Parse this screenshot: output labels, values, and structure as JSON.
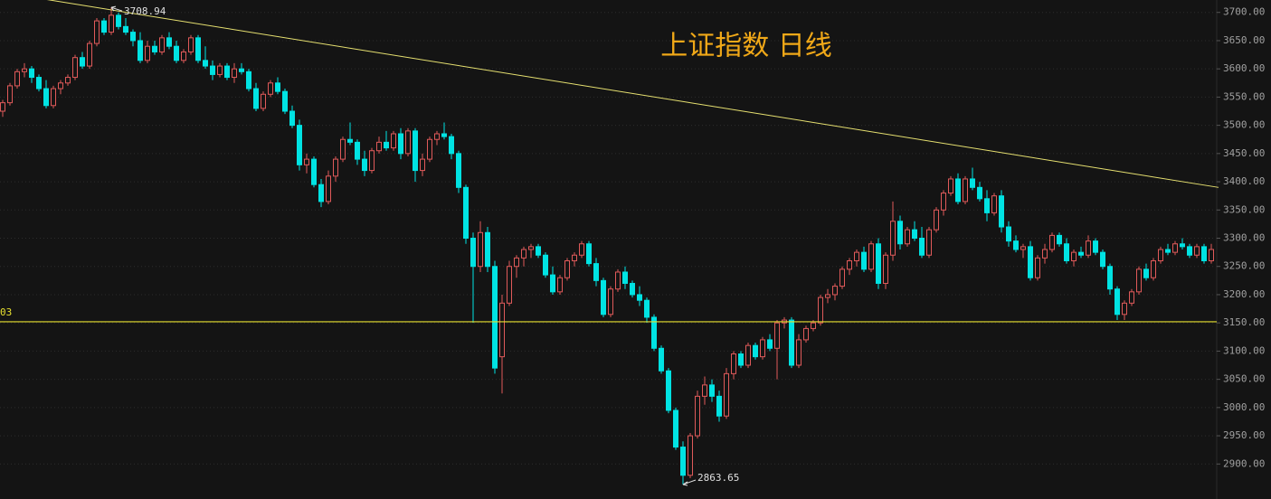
{
  "chart_data": {
    "type": "candlestick",
    "title": "上证指数 日线",
    "up_color": "#e05a5a",
    "down_color": "#00e3e3",
    "grid": true,
    "ylim": [
      2838,
      3722
    ],
    "yticks": [
      {
        "value": 2900,
        "label": "2900.00"
      },
      {
        "value": 2950,
        "label": "2950.00"
      },
      {
        "value": 3000,
        "label": "3000.00"
      },
      {
        "value": 3050,
        "label": "3050.00"
      },
      {
        "value": 3100,
        "label": "3100.00"
      },
      {
        "value": 3150,
        "label": "3150.00"
      },
      {
        "value": 3200,
        "label": "3200.00"
      },
      {
        "value": 3250,
        "label": "3250.00"
      },
      {
        "value": 3300,
        "label": "3300.00"
      },
      {
        "value": 3350,
        "label": "3350.00"
      },
      {
        "value": 3400,
        "label": "3400.00"
      },
      {
        "value": 3450,
        "label": "3450.00"
      },
      {
        "value": 3500,
        "label": "3500.00"
      },
      {
        "value": 3550,
        "label": "3550.00"
      },
      {
        "value": 3600,
        "label": "3600.00"
      },
      {
        "value": 3650,
        "label": "3650.00"
      },
      {
        "value": 3700,
        "label": "3700.00"
      }
    ],
    "hline": {
      "value": 3152,
      "label": "03",
      "color": "#e8e030"
    },
    "trendline": {
      "x": [
        6,
        168
      ],
      "y": [
        3723,
        3390
      ],
      "color": "#e6e070"
    },
    "high_marker": 15,
    "low_marker": 94,
    "candles": [
      [
        3525,
        3545,
        3515,
        3540
      ],
      [
        3540,
        3575,
        3535,
        3570
      ],
      [
        3570,
        3600,
        3565,
        3595
      ],
      [
        3595,
        3610,
        3585,
        3600
      ],
      [
        3600,
        3605,
        3575,
        3585
      ],
      [
        3585,
        3590,
        3560,
        3565
      ],
      [
        3565,
        3580,
        3530,
        3535
      ],
      [
        3535,
        3570,
        3530,
        3565
      ],
      [
        3565,
        3580,
        3555,
        3575
      ],
      [
        3575,
        3590,
        3570,
        3585
      ],
      [
        3585,
        3625,
        3580,
        3620
      ],
      [
        3620,
        3630,
        3600,
        3605
      ],
      [
        3605,
        3650,
        3600,
        3645
      ],
      [
        3645,
        3690,
        3640,
        3685
      ],
      [
        3685,
        3690,
        3660,
        3665
      ],
      [
        3665,
        3708.94,
        3660,
        3695
      ],
      [
        3695,
        3700,
        3670,
        3675
      ],
      [
        3675,
        3690,
        3660,
        3665
      ],
      [
        3665,
        3670,
        3640,
        3650
      ],
      [
        3650,
        3665,
        3610,
        3615
      ],
      [
        3615,
        3650,
        3610,
        3640
      ],
      [
        3640,
        3650,
        3625,
        3630
      ],
      [
        3630,
        3660,
        3625,
        3655
      ],
      [
        3655,
        3665,
        3635,
        3640
      ],
      [
        3640,
        3650,
        3610,
        3615
      ],
      [
        3615,
        3635,
        3610,
        3630
      ],
      [
        3630,
        3660,
        3625,
        3655
      ],
      [
        3655,
        3660,
        3610,
        3615
      ],
      [
        3615,
        3640,
        3600,
        3605
      ],
      [
        3605,
        3615,
        3580,
        3590
      ],
      [
        3590,
        3610,
        3585,
        3605
      ],
      [
        3605,
        3610,
        3580,
        3585
      ],
      [
        3585,
        3610,
        3575,
        3600
      ],
      [
        3600,
        3610,
        3590,
        3595
      ],
      [
        3595,
        3600,
        3560,
        3565
      ],
      [
        3565,
        3575,
        3525,
        3530
      ],
      [
        3530,
        3560,
        3525,
        3555
      ],
      [
        3555,
        3580,
        3550,
        3575
      ],
      [
        3575,
        3585,
        3555,
        3560
      ],
      [
        3560,
        3565,
        3520,
        3525
      ],
      [
        3525,
        3535,
        3495,
        3500
      ],
      [
        3500,
        3510,
        3420,
        3430
      ],
      [
        3430,
        3450,
        3415,
        3440
      ],
      [
        3440,
        3445,
        3390,
        3395
      ],
      [
        3395,
        3405,
        3355,
        3365
      ],
      [
        3365,
        3420,
        3360,
        3410
      ],
      [
        3410,
        3445,
        3400,
        3440
      ],
      [
        3440,
        3480,
        3435,
        3475
      ],
      [
        3475,
        3505,
        3465,
        3470
      ],
      [
        3470,
        3475,
        3430,
        3440
      ],
      [
        3440,
        3455,
        3410,
        3420
      ],
      [
        3420,
        3460,
        3415,
        3455
      ],
      [
        3455,
        3480,
        3450,
        3470
      ],
      [
        3470,
        3490,
        3455,
        3460
      ],
      [
        3460,
        3490,
        3455,
        3485
      ],
      [
        3485,
        3495,
        3440,
        3450
      ],
      [
        3450,
        3495,
        3445,
        3490
      ],
      [
        3490,
        3495,
        3400,
        3420
      ],
      [
        3420,
        3450,
        3410,
        3440
      ],
      [
        3440,
        3480,
        3435,
        3475
      ],
      [
        3475,
        3490,
        3465,
        3485
      ],
      [
        3485,
        3505,
        3475,
        3480
      ],
      [
        3480,
        3485,
        3440,
        3450
      ],
      [
        3450,
        3455,
        3380,
        3390
      ],
      [
        3390,
        3395,
        3290,
        3300
      ],
      [
        3300,
        3310,
        3150,
        3250
      ],
      [
        3250,
        3330,
        3240,
        3310
      ],
      [
        3310,
        3320,
        3240,
        3250
      ],
      [
        3250,
        3260,
        3060,
        3070
      ],
      [
        3090,
        3200,
        3025,
        3185
      ],
      [
        3185,
        3260,
        3180,
        3250
      ],
      [
        3250,
        3270,
        3230,
        3265
      ],
      [
        3265,
        3285,
        3250,
        3280
      ],
      [
        3280,
        3290,
        3265,
        3285
      ],
      [
        3285,
        3290,
        3265,
        3270
      ],
      [
        3270,
        3275,
        3230,
        3235
      ],
      [
        3235,
        3250,
        3200,
        3205
      ],
      [
        3205,
        3235,
        3200,
        3230
      ],
      [
        3230,
        3265,
        3225,
        3260
      ],
      [
        3260,
        3275,
        3250,
        3270
      ],
      [
        3270,
        3295,
        3265,
        3290
      ],
      [
        3290,
        3295,
        3250,
        3255
      ],
      [
        3255,
        3265,
        3215,
        3225
      ],
      [
        3225,
        3230,
        3160,
        3165
      ],
      [
        3165,
        3215,
        3160,
        3210
      ],
      [
        3210,
        3245,
        3205,
        3240
      ],
      [
        3240,
        3250,
        3210,
        3220
      ],
      [
        3220,
        3225,
        3195,
        3200
      ],
      [
        3200,
        3215,
        3180,
        3190
      ],
      [
        3190,
        3195,
        3150,
        3160
      ],
      [
        3160,
        3165,
        3100,
        3105
      ],
      [
        3105,
        3110,
        3060,
        3065
      ],
      [
        3065,
        3070,
        2990,
        2995
      ],
      [
        2995,
        3000,
        2925,
        2930
      ],
      [
        2930,
        2940,
        2863.65,
        2880
      ],
      [
        2880,
        2955,
        2875,
        2950
      ],
      [
        2950,
        3030,
        2945,
        3020
      ],
      [
        3020,
        3055,
        3005,
        3040
      ],
      [
        3040,
        3050,
        3010,
        3020
      ],
      [
        3020,
        3030,
        2975,
        2985
      ],
      [
        2985,
        3070,
        2980,
        3060
      ],
      [
        3060,
        3100,
        3050,
        3095
      ],
      [
        3095,
        3100,
        3070,
        3075
      ],
      [
        3075,
        3115,
        3070,
        3110
      ],
      [
        3110,
        3115,
        3085,
        3090
      ],
      [
        3090,
        3125,
        3085,
        3120
      ],
      [
        3120,
        3130,
        3100,
        3105
      ],
      [
        3105,
        3155,
        3050,
        3150
      ],
      [
        3150,
        3160,
        3140,
        3155
      ],
      [
        3155,
        3160,
        3070,
        3075
      ],
      [
        3075,
        3130,
        3070,
        3120
      ],
      [
        3120,
        3145,
        3115,
        3140
      ],
      [
        3140,
        3155,
        3135,
        3150
      ],
      [
        3150,
        3200,
        3145,
        3195
      ],
      [
        3195,
        3210,
        3185,
        3200
      ],
      [
        3200,
        3220,
        3190,
        3215
      ],
      [
        3215,
        3250,
        3210,
        3245
      ],
      [
        3245,
        3265,
        3235,
        3260
      ],
      [
        3260,
        3280,
        3250,
        3275
      ],
      [
        3275,
        3285,
        3240,
        3245
      ],
      [
        3245,
        3295,
        3240,
        3290
      ],
      [
        3290,
        3300,
        3210,
        3220
      ],
      [
        3220,
        3275,
        3210,
        3270
      ],
      [
        3270,
        3365,
        3260,
        3330
      ],
      [
        3330,
        3340,
        3280,
        3290
      ],
      [
        3290,
        3320,
        3285,
        3315
      ],
      [
        3315,
        3330,
        3295,
        3300
      ],
      [
        3300,
        3320,
        3265,
        3270
      ],
      [
        3270,
        3320,
        3265,
        3315
      ],
      [
        3315,
        3355,
        3310,
        3350
      ],
      [
        3350,
        3385,
        3340,
        3380
      ],
      [
        3380,
        3410,
        3375,
        3405
      ],
      [
        3405,
        3415,
        3360,
        3365
      ],
      [
        3365,
        3410,
        3360,
        3405
      ],
      [
        3405,
        3425,
        3385,
        3390
      ],
      [
        3390,
        3400,
        3365,
        3370
      ],
      [
        3370,
        3385,
        3330,
        3345
      ],
      [
        3345,
        3380,
        3340,
        3375
      ],
      [
        3375,
        3385,
        3310,
        3320
      ],
      [
        3320,
        3330,
        3285,
        3295
      ],
      [
        3295,
        3305,
        3275,
        3280
      ],
      [
        3280,
        3290,
        3265,
        3285
      ],
      [
        3285,
        3295,
        3225,
        3230
      ],
      [
        3230,
        3270,
        3225,
        3265
      ],
      [
        3265,
        3290,
        3255,
        3280
      ],
      [
        3280,
        3310,
        3275,
        3305
      ],
      [
        3305,
        3310,
        3285,
        3290
      ],
      [
        3290,
        3300,
        3255,
        3260
      ],
      [
        3260,
        3280,
        3250,
        3275
      ],
      [
        3275,
        3285,
        3265,
        3270
      ],
      [
        3270,
        3305,
        3265,
        3295
      ],
      [
        3295,
        3300,
        3270,
        3275
      ],
      [
        3275,
        3280,
        3245,
        3250
      ],
      [
        3250,
        3255,
        3200,
        3210
      ],
      [
        3210,
        3215,
        3155,
        3165
      ],
      [
        3165,
        3190,
        3155,
        3185
      ],
      [
        3185,
        3210,
        3180,
        3205
      ],
      [
        3205,
        3250,
        3200,
        3245
      ],
      [
        3245,
        3255,
        3225,
        3230
      ],
      [
        3230,
        3265,
        3225,
        3260
      ],
      [
        3260,
        3285,
        3255,
        3280
      ],
      [
        3280,
        3290,
        3270,
        3275
      ],
      [
        3275,
        3295,
        3270,
        3290
      ],
      [
        3290,
        3300,
        3280,
        3285
      ],
      [
        3285,
        3290,
        3265,
        3270
      ],
      [
        3270,
        3290,
        3265,
        3285
      ],
      [
        3285,
        3290,
        3255,
        3260
      ],
      [
        3260,
        3290,
        3255,
        3280
      ]
    ]
  }
}
